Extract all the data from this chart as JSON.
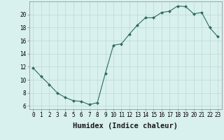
{
  "x": [
    0,
    1,
    2,
    3,
    4,
    5,
    6,
    7,
    8,
    9,
    10,
    11,
    12,
    13,
    14,
    15,
    16,
    17,
    18,
    19,
    20,
    21,
    22,
    23
  ],
  "y": [
    11.8,
    10.5,
    9.3,
    8.0,
    7.3,
    6.8,
    6.7,
    6.2,
    6.5,
    11.0,
    15.3,
    15.5,
    17.0,
    18.4,
    19.5,
    19.5,
    20.3,
    20.5,
    21.3,
    21.2,
    20.1,
    20.3,
    18.0,
    16.6
  ],
  "xlabel": "Humidex (Indice chaleur)",
  "xlim": [
    -0.5,
    23.5
  ],
  "ylim": [
    5.5,
    22.0
  ],
  "yticks": [
    6,
    8,
    10,
    12,
    14,
    16,
    18,
    20
  ],
  "xticks": [
    0,
    1,
    2,
    3,
    4,
    5,
    6,
    7,
    8,
    9,
    10,
    11,
    12,
    13,
    14,
    15,
    16,
    17,
    18,
    19,
    20,
    21,
    22,
    23
  ],
  "line_color": "#2d6b5e",
  "marker": "D",
  "marker_size": 2.0,
  "bg_color": "#d8f0ee",
  "grid_color": "#c0d8d4",
  "spine_color": "#888888",
  "tick_label_fontsize": 5.5,
  "xlabel_fontsize": 7.5,
  "xlabel_fontweight": "bold"
}
